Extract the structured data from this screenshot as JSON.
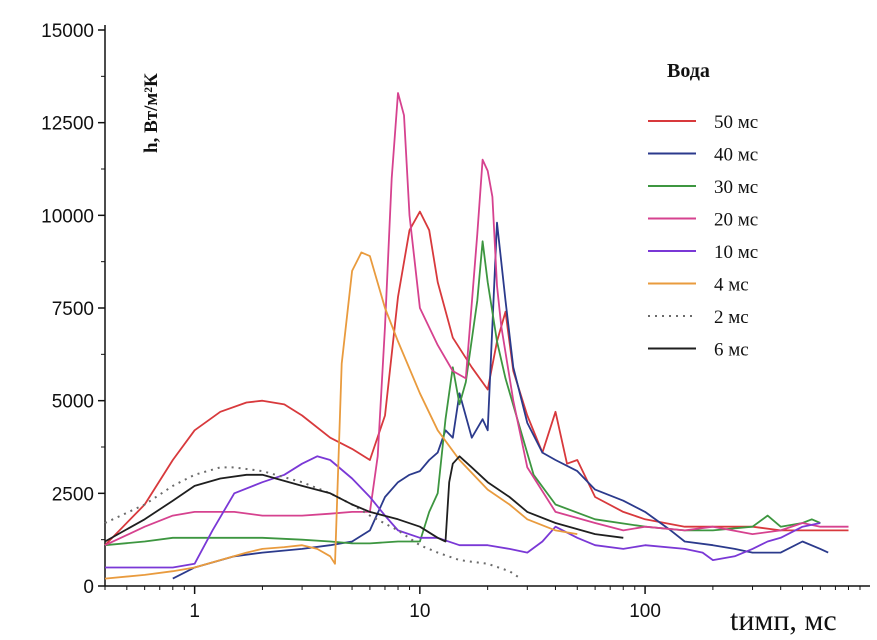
{
  "chart_data": {
    "type": "line",
    "title": "",
    "ylabel": "h, Вт/м²К",
    "xlabel": "tимп, мс",
    "x_scale": "log",
    "xlim": [
      0.4,
      900
    ],
    "ylim": [
      0,
      15000
    ],
    "x_ticks": [
      {
        "value": 1,
        "label": "1"
      },
      {
        "value": 10,
        "label": "10"
      },
      {
        "value": 100,
        "label": "100"
      }
    ],
    "y_ticks": [
      {
        "value": 0,
        "label": "0"
      },
      {
        "value": 2500,
        "label": "2500"
      },
      {
        "value": 5000,
        "label": "5000"
      },
      {
        "value": 7500,
        "label": "7500"
      },
      {
        "value": 10000,
        "label": "10000"
      },
      {
        "value": 12500,
        "label": "12500"
      },
      {
        "value": 15000,
        "label": "15000"
      }
    ],
    "grid": false,
    "legend": {
      "title": "Вода",
      "position": "top-right"
    },
    "series": [
      {
        "name": "50 мс",
        "color": "#d8393c",
        "dash": "solid",
        "points": [
          [
            0.4,
            1100
          ],
          [
            0.6,
            2200
          ],
          [
            0.8,
            3400
          ],
          [
            1,
            4200
          ],
          [
            1.3,
            4700
          ],
          [
            1.7,
            4950
          ],
          [
            2,
            5000
          ],
          [
            2.5,
            4900
          ],
          [
            3,
            4600
          ],
          [
            4,
            4000
          ],
          [
            5,
            3700
          ],
          [
            6,
            3400
          ],
          [
            7,
            4600
          ],
          [
            8,
            7800
          ],
          [
            9,
            9600
          ],
          [
            10,
            10100
          ],
          [
            11,
            9600
          ],
          [
            12,
            8200
          ],
          [
            14,
            6700
          ],
          [
            17,
            5900
          ],
          [
            20,
            5300
          ],
          [
            22,
            6600
          ],
          [
            24,
            7400
          ],
          [
            26,
            5800
          ],
          [
            30,
            4600
          ],
          [
            35,
            3600
          ],
          [
            40,
            4700
          ],
          [
            45,
            3300
          ],
          [
            50,
            3400
          ],
          [
            60,
            2400
          ],
          [
            80,
            2000
          ],
          [
            100,
            1800
          ],
          [
            150,
            1600
          ],
          [
            200,
            1600
          ],
          [
            300,
            1600
          ],
          [
            400,
            1500
          ],
          [
            600,
            1500
          ],
          [
            800,
            1500
          ]
        ]
      },
      {
        "name": "40 мс",
        "color": "#2b3a8c",
        "dash": "solid",
        "points": [
          [
            0.8,
            200
          ],
          [
            1,
            500
          ],
          [
            1.5,
            800
          ],
          [
            2,
            900
          ],
          [
            3,
            1000
          ],
          [
            4,
            1100
          ],
          [
            5,
            1200
          ],
          [
            6,
            1500
          ],
          [
            7,
            2400
          ],
          [
            8,
            2800
          ],
          [
            9,
            3000
          ],
          [
            10,
            3100
          ],
          [
            11,
            3400
          ],
          [
            12,
            3600
          ],
          [
            13,
            4200
          ],
          [
            14,
            4000
          ],
          [
            15,
            5200
          ],
          [
            17,
            4000
          ],
          [
            19,
            4500
          ],
          [
            20,
            4200
          ],
          [
            22,
            9800
          ],
          [
            24,
            7700
          ],
          [
            26,
            5900
          ],
          [
            30,
            4400
          ],
          [
            35,
            3600
          ],
          [
            40,
            3400
          ],
          [
            50,
            3100
          ],
          [
            60,
            2600
          ],
          [
            80,
            2300
          ],
          [
            100,
            2000
          ],
          [
            130,
            1500
          ],
          [
            150,
            1200
          ],
          [
            200,
            1100
          ],
          [
            250,
            1000
          ],
          [
            300,
            900
          ],
          [
            400,
            900
          ],
          [
            500,
            1200
          ],
          [
            600,
            1000
          ],
          [
            650,
            900
          ]
        ]
      },
      {
        "name": "30 мс",
        "color": "#3d9640",
        "dash": "solid",
        "points": [
          [
            0.4,
            1100
          ],
          [
            0.6,
            1200
          ],
          [
            0.8,
            1300
          ],
          [
            1,
            1300
          ],
          [
            1.5,
            1300
          ],
          [
            2,
            1300
          ],
          [
            3,
            1250
          ],
          [
            4,
            1200
          ],
          [
            5,
            1150
          ],
          [
            6,
            1150
          ],
          [
            8,
            1200
          ],
          [
            10,
            1200
          ],
          [
            11,
            2000
          ],
          [
            12,
            2500
          ],
          [
            13,
            4500
          ],
          [
            14,
            5900
          ],
          [
            15,
            4900
          ],
          [
            16,
            5500
          ],
          [
            18,
            7700
          ],
          [
            19,
            9300
          ],
          [
            20,
            8200
          ],
          [
            22,
            6600
          ],
          [
            24,
            5600
          ],
          [
            28,
            4200
          ],
          [
            32,
            3000
          ],
          [
            40,
            2200
          ],
          [
            60,
            1800
          ],
          [
            100,
            1600
          ],
          [
            150,
            1500
          ],
          [
            200,
            1500
          ],
          [
            300,
            1600
          ],
          [
            350,
            1900
          ],
          [
            400,
            1600
          ],
          [
            500,
            1700
          ],
          [
            550,
            1800
          ],
          [
            600,
            1700
          ]
        ]
      },
      {
        "name": "20 мс",
        "color": "#d6428f",
        "dash": "solid",
        "points": [
          [
            0.4,
            1100
          ],
          [
            0.6,
            1600
          ],
          [
            0.8,
            1900
          ],
          [
            1,
            2000
          ],
          [
            1.5,
            2000
          ],
          [
            2,
            1900
          ],
          [
            3,
            1900
          ],
          [
            4,
            1950
          ],
          [
            5,
            2000
          ],
          [
            6,
            2000
          ],
          [
            6.5,
            3500
          ],
          [
            7,
            7000
          ],
          [
            7.5,
            11000
          ],
          [
            8,
            13300
          ],
          [
            8.5,
            12700
          ],
          [
            9,
            10000
          ],
          [
            10,
            7500
          ],
          [
            12,
            6500
          ],
          [
            14,
            5800
          ],
          [
            16,
            5600
          ],
          [
            18,
            9500
          ],
          [
            19,
            11500
          ],
          [
            20,
            11200
          ],
          [
            21,
            10500
          ],
          [
            22,
            8100
          ],
          [
            23,
            7000
          ],
          [
            26,
            5000
          ],
          [
            30,
            3200
          ],
          [
            40,
            2000
          ],
          [
            60,
            1700
          ],
          [
            80,
            1500
          ],
          [
            100,
            1600
          ],
          [
            150,
            1500
          ],
          [
            200,
            1600
          ],
          [
            300,
            1400
          ],
          [
            400,
            1500
          ],
          [
            500,
            1700
          ],
          [
            600,
            1600
          ],
          [
            700,
            1600
          ],
          [
            800,
            1600
          ]
        ]
      },
      {
        "name": "10 мс",
        "color": "#7a38d6",
        "dash": "solid",
        "points": [
          [
            0.4,
            500
          ],
          [
            0.8,
            500
          ],
          [
            1,
            600
          ],
          [
            1.2,
            1500
          ],
          [
            1.5,
            2500
          ],
          [
            2,
            2800
          ],
          [
            2.5,
            3000
          ],
          [
            3,
            3300
          ],
          [
            3.5,
            3500
          ],
          [
            4,
            3400
          ],
          [
            5,
            2900
          ],
          [
            6,
            2400
          ],
          [
            7,
            1900
          ],
          [
            8,
            1500
          ],
          [
            10,
            1300
          ],
          [
            12,
            1300
          ],
          [
            15,
            1100
          ],
          [
            20,
            1100
          ],
          [
            25,
            1000
          ],
          [
            30,
            900
          ],
          [
            35,
            1200
          ],
          [
            40,
            1600
          ],
          [
            50,
            1300
          ],
          [
            60,
            1100
          ],
          [
            80,
            1000
          ],
          [
            100,
            1100
          ],
          [
            150,
            1000
          ],
          [
            180,
            900
          ],
          [
            200,
            700
          ],
          [
            250,
            800
          ],
          [
            300,
            1000
          ],
          [
            350,
            1200
          ],
          [
            400,
            1300
          ],
          [
            500,
            1600
          ],
          [
            600,
            1700
          ]
        ]
      },
      {
        "name": "4 мс",
        "color": "#e99b3e",
        "dash": "solid",
        "points": [
          [
            0.4,
            200
          ],
          [
            0.6,
            300
          ],
          [
            0.8,
            400
          ],
          [
            1,
            500
          ],
          [
            1.3,
            700
          ],
          [
            1.7,
            900
          ],
          [
            2,
            1000
          ],
          [
            2.5,
            1050
          ],
          [
            3,
            1100
          ],
          [
            3.5,
            1000
          ],
          [
            4,
            800
          ],
          [
            4.2,
            600
          ],
          [
            4.5,
            6000
          ],
          [
            5,
            8500
          ],
          [
            5.5,
            9000
          ],
          [
            6,
            8900
          ],
          [
            7,
            7500
          ],
          [
            8,
            6600
          ],
          [
            10,
            5200
          ],
          [
            12,
            4200
          ],
          [
            15,
            3400
          ],
          [
            20,
            2600
          ],
          [
            25,
            2200
          ],
          [
            30,
            1800
          ],
          [
            40,
            1500
          ],
          [
            50,
            1400
          ]
        ]
      },
      {
        "name": "2 мс",
        "color": "#6b6b6b",
        "dash": "dotted",
        "points": [
          [
            0.4,
            1700
          ],
          [
            0.6,
            2200
          ],
          [
            0.8,
            2700
          ],
          [
            1,
            3000
          ],
          [
            1.3,
            3200
          ],
          [
            1.5,
            3200
          ],
          [
            2,
            3100
          ],
          [
            3,
            2800
          ],
          [
            4,
            2500
          ],
          [
            5,
            2200
          ],
          [
            6,
            1900
          ],
          [
            8,
            1500
          ],
          [
            10,
            1100
          ],
          [
            12,
            900
          ],
          [
            15,
            700
          ],
          [
            20,
            600
          ],
          [
            25,
            400
          ],
          [
            28,
            200
          ]
        ]
      },
      {
        "name": "6 мс",
        "color": "#1f1f1f",
        "dash": "solid",
        "points": [
          [
            0.4,
            1200
          ],
          [
            0.6,
            1800
          ],
          [
            0.8,
            2300
          ],
          [
            1,
            2700
          ],
          [
            1.3,
            2900
          ],
          [
            1.7,
            3000
          ],
          [
            2,
            3000
          ],
          [
            3,
            2700
          ],
          [
            4,
            2500
          ],
          [
            5,
            2200
          ],
          [
            6,
            2000
          ],
          [
            8,
            1800
          ],
          [
            10,
            1600
          ],
          [
            12,
            1300
          ],
          [
            13,
            1200
          ],
          [
            13.5,
            2800
          ],
          [
            14,
            3300
          ],
          [
            15,
            3500
          ],
          [
            17,
            3200
          ],
          [
            20,
            2800
          ],
          [
            25,
            2400
          ],
          [
            30,
            2000
          ],
          [
            40,
            1700
          ],
          [
            60,
            1400
          ],
          [
            80,
            1300
          ]
        ]
      }
    ]
  }
}
